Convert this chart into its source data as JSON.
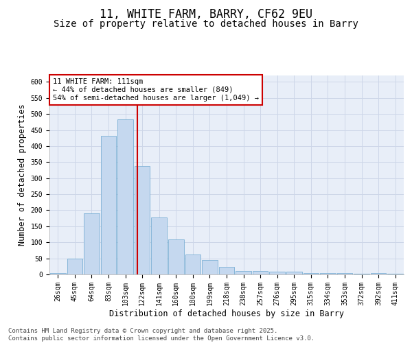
{
  "title_line1": "11, WHITE FARM, BARRY, CF62 9EU",
  "title_line2": "Size of property relative to detached houses in Barry",
  "xlabel": "Distribution of detached houses by size in Barry",
  "ylabel": "Number of detached properties",
  "categories": [
    "26sqm",
    "45sqm",
    "64sqm",
    "83sqm",
    "103sqm",
    "122sqm",
    "141sqm",
    "160sqm",
    "180sqm",
    "199sqm",
    "218sqm",
    "238sqm",
    "257sqm",
    "276sqm",
    "295sqm",
    "315sqm",
    "334sqm",
    "353sqm",
    "372sqm",
    "392sqm",
    "411sqm"
  ],
  "values": [
    5,
    50,
    190,
    432,
    483,
    338,
    178,
    108,
    62,
    44,
    24,
    11,
    11,
    8,
    8,
    5,
    4,
    5,
    3,
    5,
    3
  ],
  "bar_color": "#c5d8ef",
  "bar_edge_color": "#7aafd4",
  "vline_x": 4.72,
  "vline_color": "#cc0000",
  "annotation_text": "11 WHITE FARM: 111sqm\n← 44% of detached houses are smaller (849)\n54% of semi-detached houses are larger (1,049) →",
  "annotation_box_color": "#ffffff",
  "annotation_box_edge": "#cc0000",
  "ylim": [
    0,
    620
  ],
  "yticks": [
    0,
    50,
    100,
    150,
    200,
    250,
    300,
    350,
    400,
    450,
    500,
    550,
    600
  ],
  "grid_color": "#cdd6e8",
  "bg_color": "#e8eef8",
  "footer": "Contains HM Land Registry data © Crown copyright and database right 2025.\nContains public sector information licensed under the Open Government Licence v3.0.",
  "title_fontsize": 12,
  "subtitle_fontsize": 10,
  "axis_label_fontsize": 8.5,
  "tick_fontsize": 7,
  "annotation_fontsize": 7.5,
  "footer_fontsize": 6.5
}
